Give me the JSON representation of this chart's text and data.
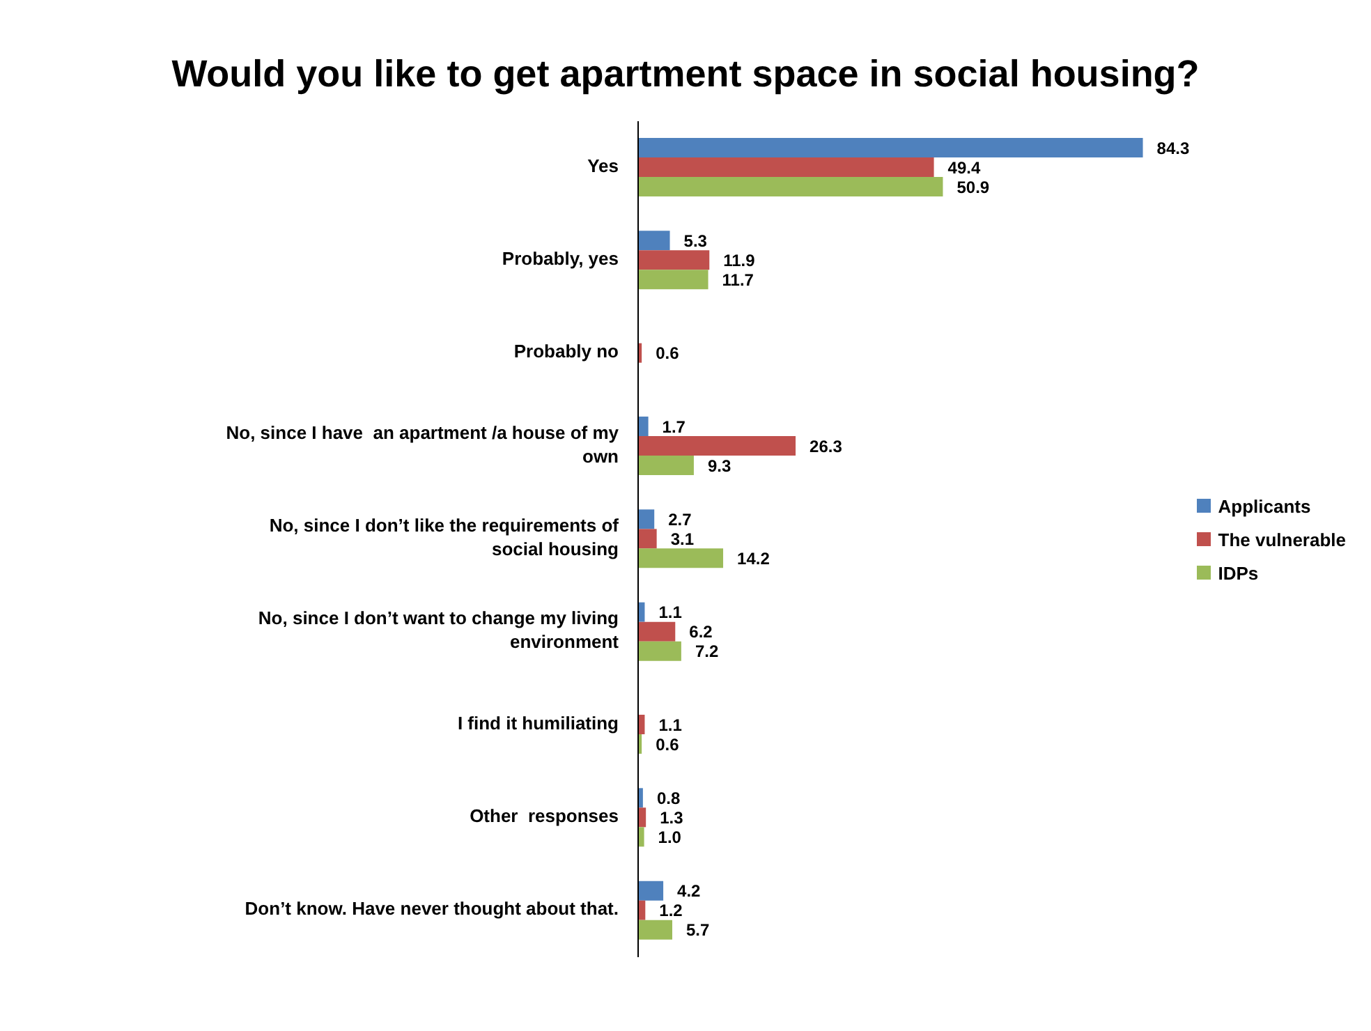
{
  "chart_data": {
    "type": "bar",
    "orientation": "horizontal",
    "title": "Would you like to get apartment space in social housing?",
    "categories": [
      "Yes",
      "Probably, yes",
      "Probably no",
      "No, since I have  an apartment /a house of my own",
      "No, since I don’t like the requirements of social housing",
      "No, since I don’t want to change my living environment",
      "I find it humiliating",
      "Other  responses",
      "Don’t know. Have never thought about that."
    ],
    "series": [
      {
        "name": "Applicants",
        "color": "#4f81bd",
        "values": [
          84.3,
          5.3,
          null,
          1.7,
          2.7,
          1.1,
          null,
          0.8,
          4.2
        ],
        "value_labels": [
          "84.3",
          "5.3",
          null,
          "1.7",
          "2.7",
          "1.1",
          null,
          "0.8",
          "4.2"
        ]
      },
      {
        "name": "The vulnerable",
        "color": "#c0504d",
        "values": [
          49.4,
          11.9,
          0.6,
          26.3,
          3.1,
          6.2,
          1.1,
          1.3,
          1.2
        ],
        "value_labels": [
          "49.4",
          "11.9",
          "0.6",
          "26.3",
          "3.1",
          "6.2",
          "1.1",
          "1.3",
          "1.2"
        ]
      },
      {
        "name": "IDPs",
        "color": "#9bbb59",
        "values": [
          50.9,
          11.7,
          null,
          9.3,
          14.2,
          7.2,
          0.6,
          1.0,
          5.7
        ],
        "value_labels": [
          "50.9",
          "11.7",
          null,
          "9.3",
          "14.2",
          "7.2",
          "0.6",
          "1.0",
          "5.7"
        ]
      }
    ],
    "legend": "right"
  }
}
